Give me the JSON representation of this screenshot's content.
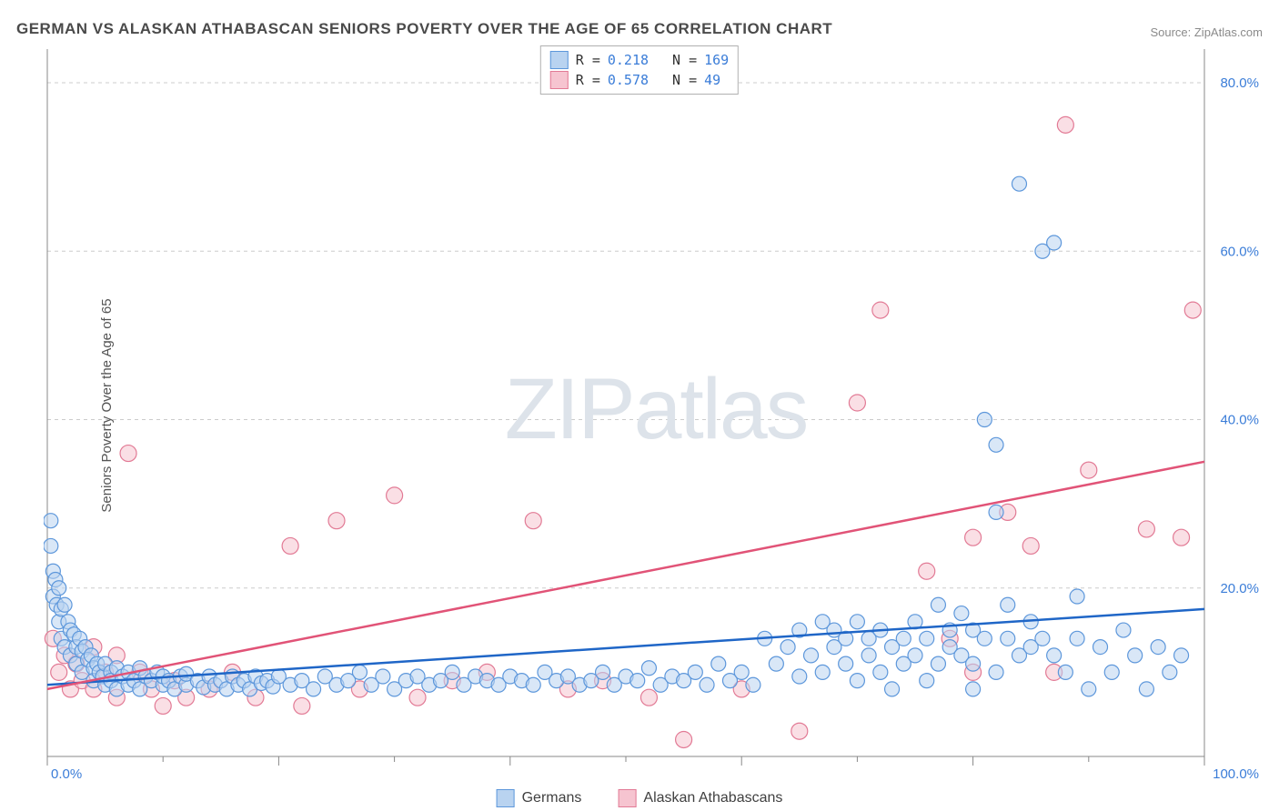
{
  "title": "GERMAN VS ALASKAN ATHABASCAN SENIORS POVERTY OVER THE AGE OF 65 CORRELATION CHART",
  "source_prefix": "Source: ",
  "source_name": "ZipAtlas.com",
  "ylabel": "Seniors Poverty Over the Age of 65",
  "watermark_a": "ZIP",
  "watermark_b": "atlas",
  "chart": {
    "type": "scatter",
    "xlim": [
      0,
      100
    ],
    "ylim": [
      0,
      84
    ],
    "ytick_values": [
      20,
      40,
      60,
      80
    ],
    "ytick_labels": [
      "20.0%",
      "40.0%",
      "60.0%",
      "80.0%"
    ],
    "xtick_values": [
      0,
      20,
      40,
      60,
      80,
      100
    ],
    "xtick_minor": [
      10,
      30,
      50,
      70,
      90
    ],
    "x_min_label": "0.0%",
    "x_max_label": "100.0%",
    "background_color": "#ffffff",
    "grid_color": "#cccccc",
    "axis_color": "#888888",
    "series": [
      {
        "key": "germans",
        "label": "Germans",
        "fill": "#b9d3f0",
        "fill_opacity": 0.55,
        "stroke": "#5d97db",
        "radius": 8,
        "r_value": "0.218",
        "n_value": "169",
        "reg_line": {
          "y_at_x0": 8.5,
          "y_at_x100": 17.5,
          "color": "#1f66c7"
        },
        "points": [
          [
            0.3,
            28
          ],
          [
            0.3,
            25
          ],
          [
            0.5,
            22
          ],
          [
            0.5,
            19
          ],
          [
            0.7,
            21
          ],
          [
            0.8,
            18
          ],
          [
            1.0,
            20
          ],
          [
            1.0,
            16
          ],
          [
            1.2,
            17.5
          ],
          [
            1.2,
            14
          ],
          [
            1.5,
            18
          ],
          [
            1.5,
            13
          ],
          [
            1.8,
            16
          ],
          [
            2.0,
            15
          ],
          [
            2.0,
            12
          ],
          [
            2.3,
            14.5
          ],
          [
            2.5,
            13
          ],
          [
            2.5,
            11
          ],
          [
            2.8,
            14
          ],
          [
            3.0,
            12.5
          ],
          [
            3.0,
            10
          ],
          [
            3.3,
            13
          ],
          [
            3.5,
            11.5
          ],
          [
            3.8,
            12
          ],
          [
            4.0,
            10.5
          ],
          [
            4.0,
            9
          ],
          [
            4.3,
            11
          ],
          [
            4.5,
            10
          ],
          [
            4.8,
            9.5
          ],
          [
            5.0,
            11
          ],
          [
            5.0,
            8.5
          ],
          [
            5.5,
            10
          ],
          [
            5.5,
            9
          ],
          [
            6.0,
            10.5
          ],
          [
            6.0,
            8
          ],
          [
            6.5,
            9.5
          ],
          [
            7.0,
            10
          ],
          [
            7.0,
            8.5
          ],
          [
            7.5,
            9
          ],
          [
            8.0,
            10.5
          ],
          [
            8.0,
            8
          ],
          [
            8.5,
            9.5
          ],
          [
            9.0,
            9
          ],
          [
            9.5,
            10
          ],
          [
            10.0,
            8.5
          ],
          [
            10.0,
            9.5
          ],
          [
            10.5,
            9
          ],
          [
            11.0,
            8
          ],
          [
            11.5,
            9.5
          ],
          [
            12.0,
            8.5
          ],
          [
            12.0,
            9.8
          ],
          [
            13.0,
            9
          ],
          [
            13.5,
            8.2
          ],
          [
            14.0,
            9.5
          ],
          [
            14.5,
            8.5
          ],
          [
            15.0,
            9
          ],
          [
            15.5,
            8
          ],
          [
            16.0,
            9.5
          ],
          [
            16.5,
            8.5
          ],
          [
            17.0,
            9
          ],
          [
            17.5,
            8
          ],
          [
            18.0,
            9.5
          ],
          [
            18.5,
            8.7
          ],
          [
            19.0,
            9
          ],
          [
            19.5,
            8.3
          ],
          [
            20.0,
            9.5
          ],
          [
            21.0,
            8.5
          ],
          [
            22.0,
            9
          ],
          [
            23.0,
            8
          ],
          [
            24.0,
            9.5
          ],
          [
            25.0,
            8.5
          ],
          [
            26.0,
            9
          ],
          [
            27.0,
            10
          ],
          [
            28.0,
            8.5
          ],
          [
            29.0,
            9.5
          ],
          [
            30.0,
            8
          ],
          [
            31.0,
            9
          ],
          [
            32.0,
            9.5
          ],
          [
            33.0,
            8.5
          ],
          [
            34.0,
            9
          ],
          [
            35.0,
            10
          ],
          [
            36.0,
            8.5
          ],
          [
            37.0,
            9.5
          ],
          [
            38.0,
            9
          ],
          [
            39.0,
            8.5
          ],
          [
            40.0,
            9.5
          ],
          [
            41.0,
            9
          ],
          [
            42.0,
            8.5
          ],
          [
            43.0,
            10
          ],
          [
            44.0,
            9
          ],
          [
            45.0,
            9.5
          ],
          [
            46.0,
            8.5
          ],
          [
            47.0,
            9
          ],
          [
            48.0,
            10
          ],
          [
            49.0,
            8.5
          ],
          [
            50.0,
            9.5
          ],
          [
            51.0,
            9
          ],
          [
            52.0,
            10.5
          ],
          [
            53.0,
            8.5
          ],
          [
            54.0,
            9.5
          ],
          [
            55.0,
            9
          ],
          [
            56.0,
            10
          ],
          [
            57.0,
            8.5
          ],
          [
            58.0,
            11
          ],
          [
            59.0,
            9
          ],
          [
            60.0,
            10
          ],
          [
            61.0,
            8.5
          ],
          [
            62.0,
            14
          ],
          [
            63.0,
            11
          ],
          [
            64.0,
            13
          ],
          [
            65.0,
            9.5
          ],
          [
            65.0,
            15
          ],
          [
            66.0,
            12
          ],
          [
            67.0,
            10
          ],
          [
            67.0,
            16
          ],
          [
            68.0,
            15
          ],
          [
            68.0,
            13
          ],
          [
            69.0,
            14
          ],
          [
            69.0,
            11
          ],
          [
            70.0,
            16
          ],
          [
            70.0,
            9
          ],
          [
            71.0,
            14
          ],
          [
            71.0,
            12
          ],
          [
            72.0,
            15
          ],
          [
            72.0,
            10
          ],
          [
            73.0,
            13
          ],
          [
            73.0,
            8
          ],
          [
            74.0,
            14
          ],
          [
            74.0,
            11
          ],
          [
            75.0,
            12
          ],
          [
            75.0,
            16
          ],
          [
            76.0,
            14
          ],
          [
            76.0,
            9
          ],
          [
            77.0,
            11
          ],
          [
            77.0,
            18
          ],
          [
            78.0,
            13
          ],
          [
            78.0,
            15
          ],
          [
            79.0,
            12
          ],
          [
            79.0,
            17
          ],
          [
            80.0,
            11
          ],
          [
            80.0,
            15
          ],
          [
            80.0,
            8
          ],
          [
            81.0,
            40
          ],
          [
            81.0,
            14
          ],
          [
            82.0,
            29
          ],
          [
            82.0,
            10
          ],
          [
            82.0,
            37
          ],
          [
            83.0,
            14
          ],
          [
            83.0,
            18
          ],
          [
            84.0,
            12
          ],
          [
            84.0,
            68
          ],
          [
            85.0,
            13
          ],
          [
            85.0,
            16
          ],
          [
            86.0,
            60
          ],
          [
            86.0,
            14
          ],
          [
            87.0,
            61
          ],
          [
            87.0,
            12
          ],
          [
            88.0,
            10
          ],
          [
            89.0,
            19
          ],
          [
            89.0,
            14
          ],
          [
            90.0,
            8
          ],
          [
            91.0,
            13
          ],
          [
            92.0,
            10
          ],
          [
            93.0,
            15
          ],
          [
            94.0,
            12
          ],
          [
            95.0,
            8
          ],
          [
            96.0,
            13
          ],
          [
            97.0,
            10
          ],
          [
            98.0,
            12
          ]
        ]
      },
      {
        "key": "athabascans",
        "label": "Alaskan Athabascans",
        "fill": "#f6c4d0",
        "fill_opacity": 0.55,
        "stroke": "#e27a95",
        "radius": 9,
        "r_value": "0.578",
        "n_value": "49",
        "reg_line": {
          "y_at_x0": 8.0,
          "y_at_x100": 35.0,
          "color": "#e15377"
        },
        "points": [
          [
            0.5,
            14
          ],
          [
            1.0,
            10
          ],
          [
            1.5,
            12
          ],
          [
            2.0,
            8
          ],
          [
            2.5,
            11
          ],
          [
            3.0,
            9
          ],
          [
            4.0,
            13
          ],
          [
            4.0,
            8
          ],
          [
            5.0,
            10
          ],
          [
            6.0,
            12
          ],
          [
            6.0,
            7
          ],
          [
            7.0,
            36
          ],
          [
            8.0,
            10
          ],
          [
            9.0,
            8
          ],
          [
            10.0,
            6
          ],
          [
            11.0,
            9
          ],
          [
            12.0,
            7
          ],
          [
            14.0,
            8
          ],
          [
            16.0,
            10
          ],
          [
            18.0,
            7
          ],
          [
            21.0,
            25
          ],
          [
            22.0,
            6
          ],
          [
            25.0,
            28
          ],
          [
            27.0,
            8
          ],
          [
            30.0,
            31
          ],
          [
            32.0,
            7
          ],
          [
            35.0,
            9
          ],
          [
            38.0,
            10
          ],
          [
            42.0,
            28
          ],
          [
            45.0,
            8
          ],
          [
            48.0,
            9
          ],
          [
            52.0,
            7
          ],
          [
            55.0,
            2
          ],
          [
            60.0,
            8
          ],
          [
            65.0,
            3
          ],
          [
            70.0,
            42
          ],
          [
            72.0,
            53
          ],
          [
            76.0,
            22
          ],
          [
            78.0,
            14
          ],
          [
            80.0,
            26
          ],
          [
            80.0,
            10
          ],
          [
            83.0,
            29
          ],
          [
            85.0,
            25
          ],
          [
            87.0,
            10
          ],
          [
            88.0,
            75
          ],
          [
            90.0,
            34
          ],
          [
            95.0,
            27
          ],
          [
            98.0,
            26
          ],
          [
            99.0,
            53
          ]
        ]
      }
    ]
  },
  "legend_top": {
    "R_label": "R =",
    "N_label": "N ="
  }
}
